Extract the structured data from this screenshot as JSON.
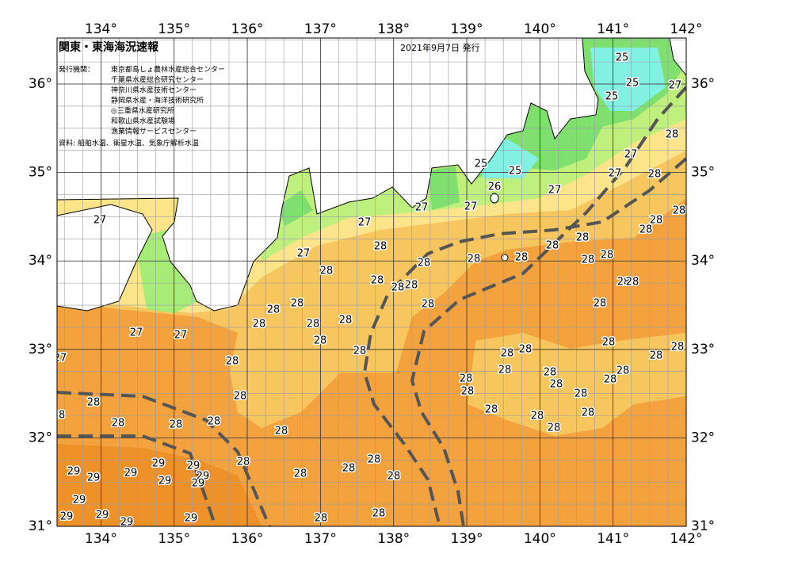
{
  "map": {
    "title": "関東・東海海況速報",
    "issue_date": "2021年9月7日 発行",
    "issuers_label": "発行機関：",
    "issuers": [
      "東京都島しょ農林水産総合センター",
      "千葉県水産総合研究センター",
      "神奈川県水産技術センター",
      "静岡県水産・海洋技術研究所",
      "◎三重県水産研究所",
      "和歌山県水産試験場",
      "漁業情報サービスセンター"
    ],
    "source": "資料: 船舶水温、衛星水温、気象庁解析水温",
    "lon_range": [
      133.4,
      142
    ],
    "lat_range": [
      31,
      36.52
    ],
    "lon_ticks": [
      {
        "value": 134,
        "label": "134°"
      },
      {
        "value": 135,
        "label": "135°"
      },
      {
        "value": 136,
        "label": "136°"
      },
      {
        "value": 137,
        "label": "137°"
      },
      {
        "value": 138,
        "label": "138°"
      },
      {
        "value": 139,
        "label": "139°"
      },
      {
        "value": 140,
        "label": "140°"
      },
      {
        "value": 141,
        "label": "141°"
      },
      {
        "value": 142,
        "label": "142°"
      }
    ],
    "lat_ticks": [
      {
        "value": 31,
        "label": "31°"
      },
      {
        "value": 32,
        "label": "32°"
      },
      {
        "value": 33,
        "label": "33°"
      },
      {
        "value": 34,
        "label": "34°"
      },
      {
        "value": 35,
        "label": "35°"
      },
      {
        "value": 36,
        "label": "36°"
      }
    ],
    "temperature_labels": [
      25,
      25,
      25,
      27,
      28,
      27,
      27,
      28,
      28,
      28,
      28,
      28,
      28,
      28,
      28,
      28,
      28,
      28,
      28,
      27,
      27,
      27,
      27,
      26,
      25,
      25,
      27,
      28,
      28,
      28,
      28,
      28,
      28,
      28,
      28,
      28,
      28,
      28,
      28,
      27,
      27,
      28,
      28,
      28,
      28,
      28,
      28,
      28,
      28,
      28,
      28,
      28,
      28,
      28,
      28,
      28,
      29,
      29,
      29,
      29,
      29,
      29,
      29,
      29,
      29,
      29,
      29,
      29,
      29,
      28,
      28,
      28,
      28,
      28,
      28,
      28,
      28,
      28,
      28,
      28,
      28,
      28,
      28,
      28,
      28,
      28,
      28,
      28,
      28,
      27,
      27
    ]
  }
}
